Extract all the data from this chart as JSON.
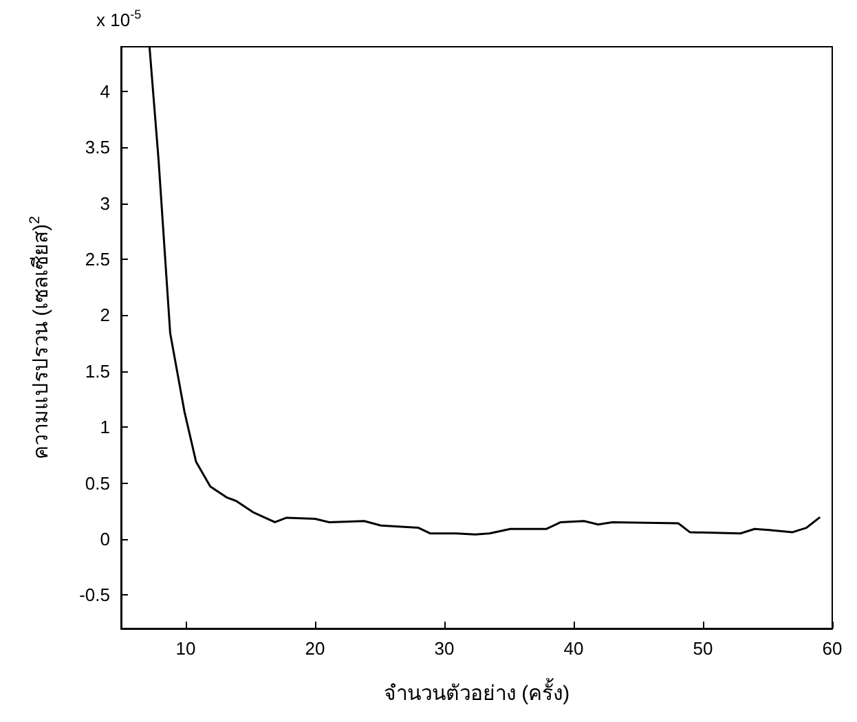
{
  "chart_data": {
    "type": "line",
    "xlabel": "จำนวนตัวอย่าง (ครั้ง)",
    "ylabel": "ความแปรปรวน (เซลเซียส)$^{2}$",
    "annotations": [
      "x 10$^{-5}$"
    ],
    "series": [
      {
        "color": "#000000",
        "x": [
          7.2,
          7.9,
          8.8,
          9.9,
          10.8,
          11.9,
          13.2,
          13.9,
          15.2,
          16.9,
          17.8,
          20,
          21.1,
          23.8,
          25.1,
          28,
          28.9,
          30.9,
          32.4,
          33.5,
          35.1,
          37.9,
          39,
          40.8,
          41.9,
          43,
          48.1,
          49,
          52.9,
          54,
          55.1,
          56.9,
          58,
          59
        ],
        "values": [
          4.4,
          3.39,
          1.84,
          1.14,
          0.69,
          0.47,
          0.37,
          0.34,
          0.24,
          0.15,
          0.19,
          0.18,
          0.15,
          0.16,
          0.12,
          0.1,
          0.05,
          0.05,
          0.04,
          0.05,
          0.09,
          0.09,
          0.15,
          0.16,
          0.13,
          0.15,
          0.14,
          0.06,
          0.05,
          0.09,
          0.08,
          0.06,
          0.1,
          0.19
        ]
      }
    ],
    "xlim": [
      5,
      60
    ],
    "xticks": [
      10,
      20,
      30,
      40,
      50,
      60
    ],
    "ylim": [
      -0.8,
      4.4
    ],
    "yticks": [
      -0.5,
      0,
      0.5,
      1,
      1.5,
      2,
      2.5,
      3,
      3.5,
      4
    ],
    "grid": false,
    "marker": "none",
    "line_style": "solid"
  }
}
